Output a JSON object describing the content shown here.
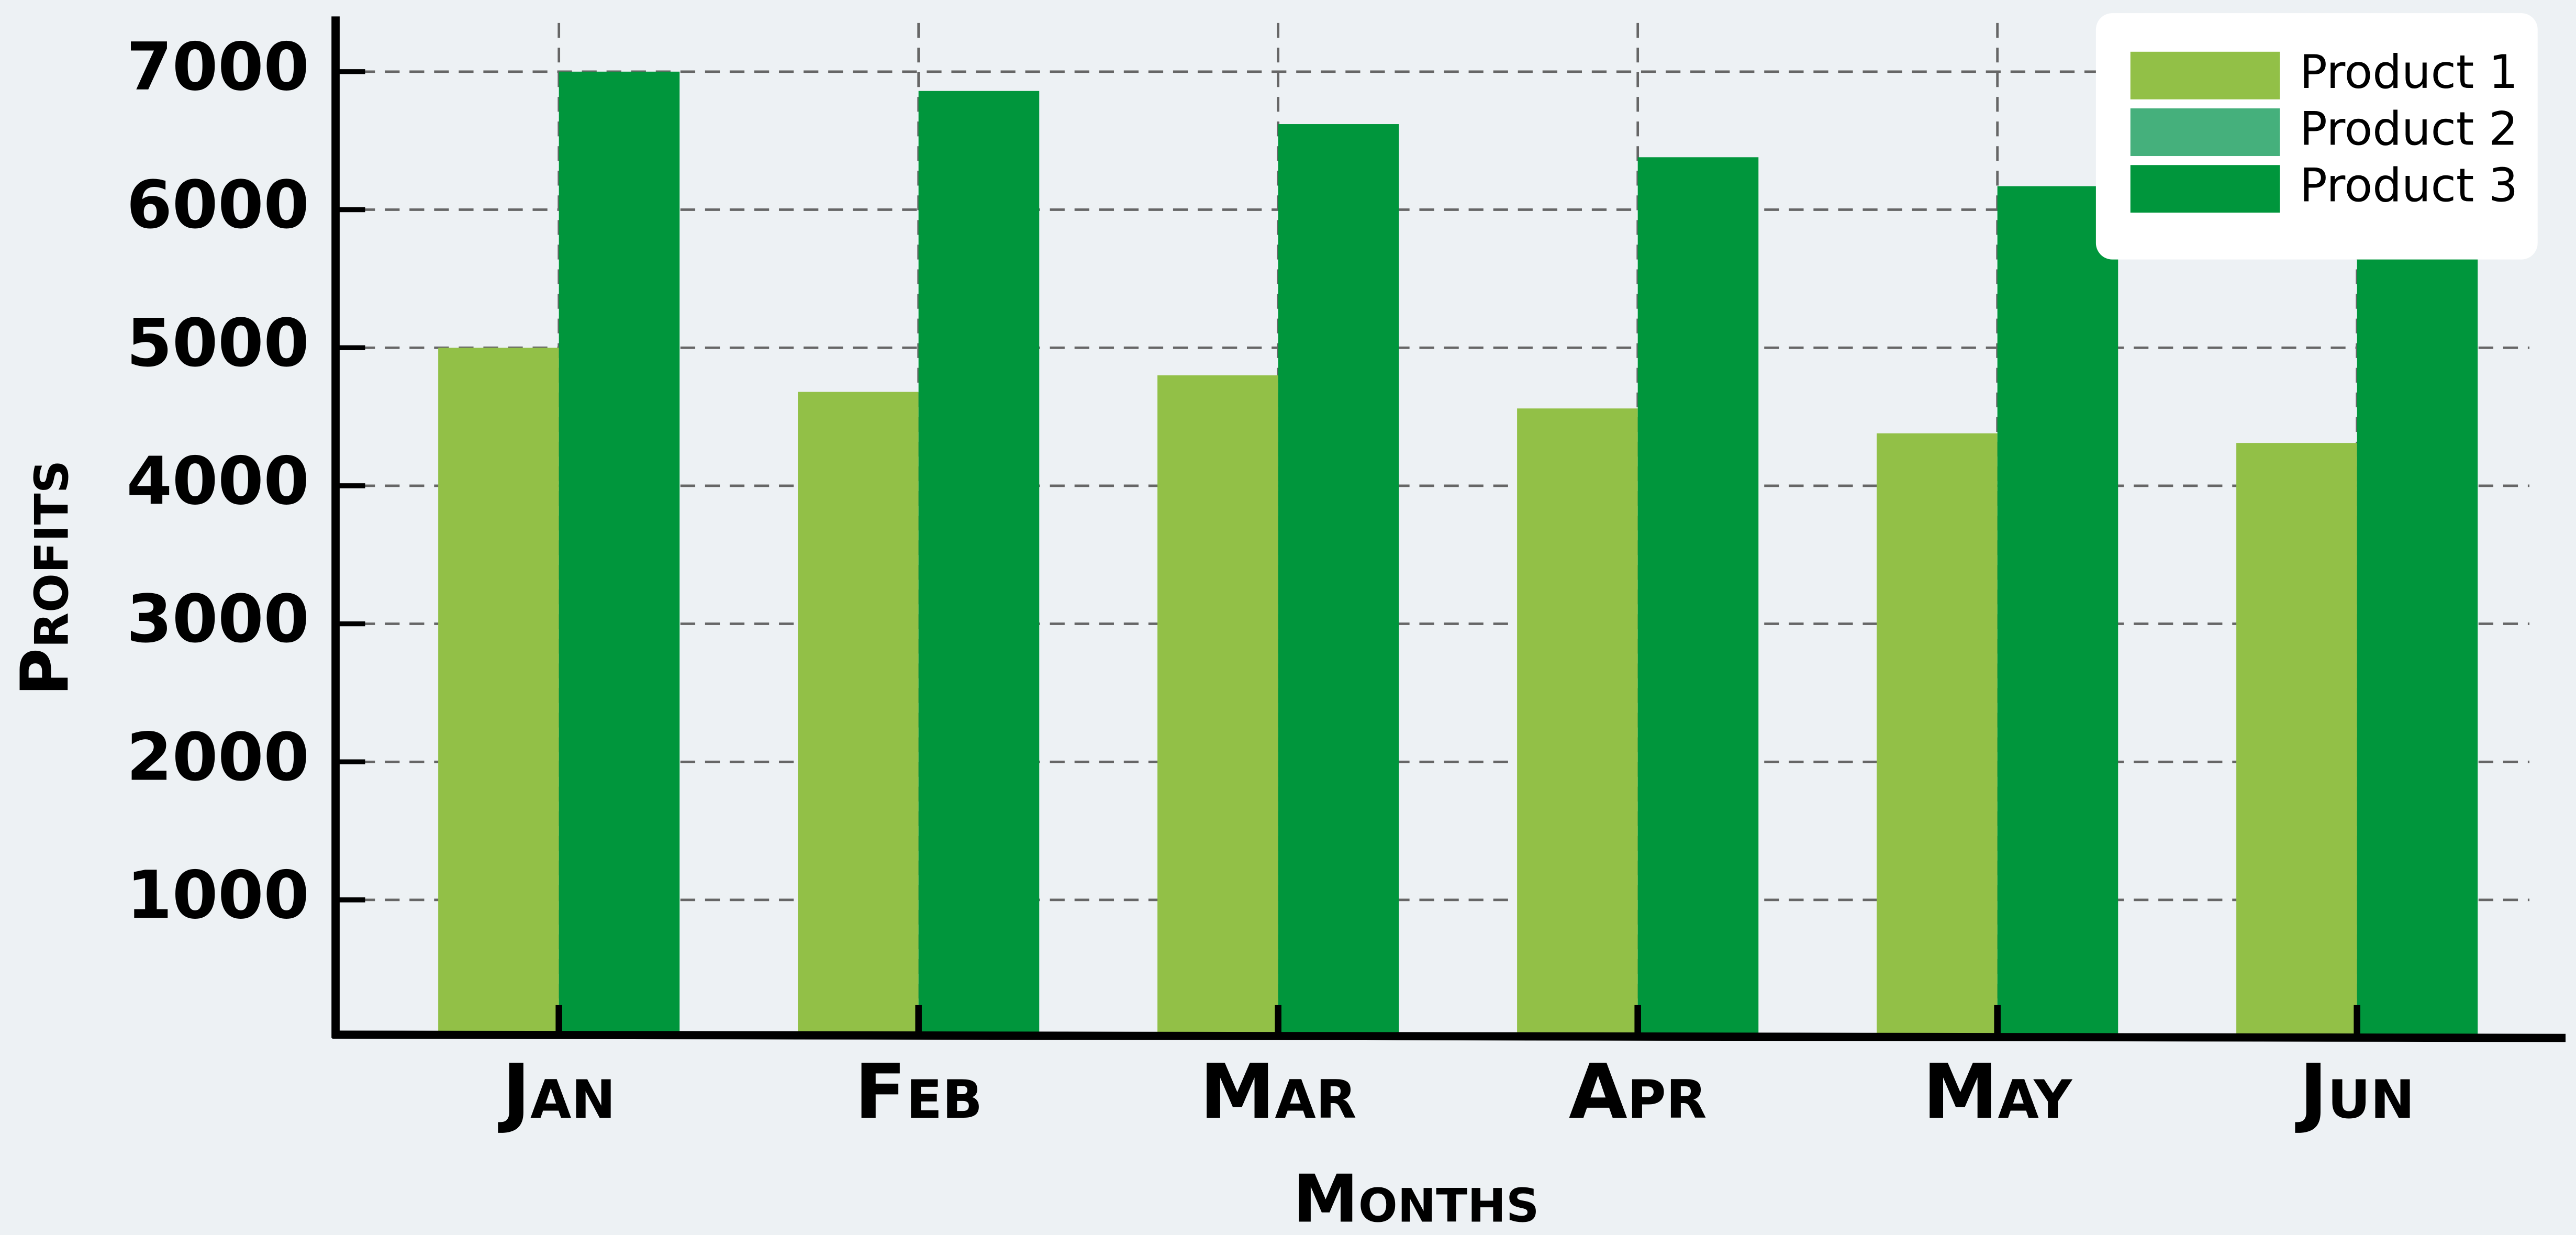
{
  "chart_data": {
    "type": "bar",
    "categories": [
      "Jan",
      "Feb",
      "Mar",
      "Apr",
      "May",
      "Jun"
    ],
    "series": [
      {
        "name": "Product 1",
        "color": "#92c047",
        "values": [
          5000,
          4680,
          4800,
          4560,
          4380,
          4310
        ]
      },
      {
        "name": "Product 2",
        "color": "#45b07c",
        "values": [
          null,
          null,
          null,
          null,
          null,
          null
        ]
      },
      {
        "name": "Product 3",
        "color": "#00963c",
        "values": [
          7000,
          6860,
          6620,
          6380,
          6170,
          5950
        ]
      }
    ],
    "x_label": "Months",
    "y_label": "Profits",
    "ylim": [
      0,
      7400
    ],
    "yticks": [
      1000,
      2000,
      3000,
      4000,
      5000,
      6000,
      7000
    ],
    "grid": true,
    "legend": "upper right"
  }
}
